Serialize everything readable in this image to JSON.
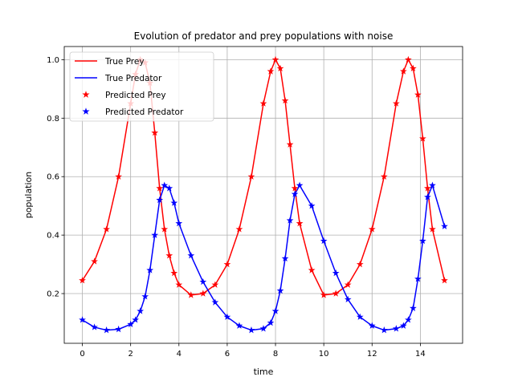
{
  "chart_data": {
    "type": "line",
    "title": "Evolution of predator and prey populations with noise",
    "xlabel": "time",
    "ylabel": "population",
    "xlim": [
      -0.75,
      15.75
    ],
    "ylim": [
      0.03,
      1.045
    ],
    "xticks": [
      0,
      2,
      4,
      6,
      8,
      10,
      12,
      14
    ],
    "yticks": [
      0.2,
      0.4,
      0.6,
      0.8,
      1.0
    ],
    "yticklabels": [
      "0.2",
      "0.4",
      "0.6",
      "0.8",
      "1.0"
    ],
    "grid": true,
    "legend_position": "upper-left",
    "x": [
      0,
      0.5,
      1,
      1.5,
      2,
      2.2,
      2.4,
      2.6,
      2.8,
      3,
      3.2,
      3.4,
      3.6,
      3.8,
      4,
      4.5,
      5,
      5.5,
      6,
      6.5,
      7,
      7.5,
      7.8,
      8,
      8.2,
      8.4,
      8.6,
      8.8,
      9,
      9.5,
      10,
      10.5,
      11,
      11.5,
      12,
      12.5,
      13,
      13.3,
      13.5,
      13.7,
      13.9,
      14.1,
      14.3,
      14.5,
      15
    ],
    "series": [
      {
        "name": "True Prey",
        "values": [
          0.245,
          0.31,
          0.42,
          0.6,
          0.85,
          0.95,
          1.0,
          0.99,
          0.92,
          0.75,
          0.56,
          0.42,
          0.33,
          0.27,
          0.23,
          0.195,
          0.2,
          0.23,
          0.3,
          0.42,
          0.6,
          0.85,
          0.96,
          1.0,
          0.97,
          0.86,
          0.71,
          0.56,
          0.44,
          0.28,
          0.195,
          0.2,
          0.23,
          0.3,
          0.42,
          0.6,
          0.85,
          0.96,
          1.0,
          0.97,
          0.88,
          0.73,
          0.56,
          0.42,
          0.245
        ],
        "color": "#ff0000"
      },
      {
        "name": "True Predator",
        "values": [
          0.11,
          0.085,
          0.075,
          0.078,
          0.095,
          0.11,
          0.14,
          0.19,
          0.28,
          0.4,
          0.52,
          0.57,
          0.56,
          0.51,
          0.44,
          0.33,
          0.24,
          0.17,
          0.12,
          0.09,
          0.075,
          0.08,
          0.1,
          0.14,
          0.21,
          0.32,
          0.45,
          0.54,
          0.57,
          0.5,
          0.38,
          0.27,
          0.18,
          0.12,
          0.09,
          0.075,
          0.08,
          0.09,
          0.11,
          0.15,
          0.25,
          0.38,
          0.53,
          0.57,
          0.43
        ],
        "color": "#0000ff"
      },
      {
        "name": "Predicted Prey",
        "values": [
          0.245,
          0.31,
          0.42,
          0.6,
          0.85,
          0.95,
          1.0,
          0.99,
          0.92,
          0.75,
          0.56,
          0.42,
          0.33,
          0.27,
          0.23,
          0.195,
          0.2,
          0.23,
          0.3,
          0.42,
          0.6,
          0.85,
          0.96,
          1.0,
          0.97,
          0.86,
          0.71,
          0.56,
          0.44,
          0.28,
          0.195,
          0.2,
          0.23,
          0.3,
          0.42,
          0.6,
          0.85,
          0.96,
          1.0,
          0.97,
          0.88,
          0.73,
          0.56,
          0.42,
          0.245
        ],
        "color": "#ff0000",
        "marker": "star"
      },
      {
        "name": "Predicted Predator",
        "values": [
          0.11,
          0.085,
          0.075,
          0.078,
          0.095,
          0.11,
          0.14,
          0.19,
          0.28,
          0.4,
          0.52,
          0.57,
          0.56,
          0.51,
          0.44,
          0.33,
          0.24,
          0.17,
          0.12,
          0.09,
          0.075,
          0.08,
          0.1,
          0.14,
          0.21,
          0.32,
          0.45,
          0.54,
          0.57,
          0.5,
          0.38,
          0.27,
          0.18,
          0.12,
          0.09,
          0.075,
          0.08,
          0.09,
          0.11,
          0.15,
          0.25,
          0.38,
          0.53,
          0.57,
          0.43
        ],
        "color": "#0000ff",
        "marker": "star"
      }
    ]
  }
}
